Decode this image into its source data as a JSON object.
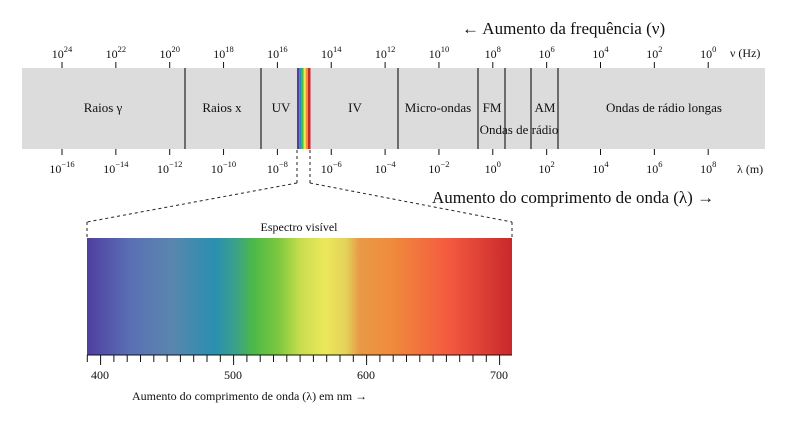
{
  "freq_axis": {
    "title": "← Aumento da frequência (ν)",
    "unit": "ν (Hz)",
    "ticks": [
      {
        "base": "10",
        "exp": "24"
      },
      {
        "base": "10",
        "exp": "22"
      },
      {
        "base": "10",
        "exp": "20"
      },
      {
        "base": "10",
        "exp": "18"
      },
      {
        "base": "10",
        "exp": "16"
      },
      {
        "base": "10",
        "exp": "14"
      },
      {
        "base": "10",
        "exp": "12"
      },
      {
        "base": "10",
        "exp": "10"
      },
      {
        "base": "10",
        "exp": "8"
      },
      {
        "base": "10",
        "exp": "6"
      },
      {
        "base": "10",
        "exp": "4"
      },
      {
        "base": "10",
        "exp": "2"
      },
      {
        "base": "10",
        "exp": "0"
      }
    ]
  },
  "wave_axis": {
    "title": "Aumento do comprimento de onda (λ) →",
    "unit": "λ (m)",
    "ticks": [
      {
        "base": "10",
        "exp": "−16"
      },
      {
        "base": "10",
        "exp": "−14"
      },
      {
        "base": "10",
        "exp": "−12"
      },
      {
        "base": "10",
        "exp": "−10"
      },
      {
        "base": "10",
        "exp": "−8"
      },
      {
        "base": "10",
        "exp": "−6"
      },
      {
        "base": "10",
        "exp": "−4"
      },
      {
        "base": "10",
        "exp": "−2"
      },
      {
        "base": "10",
        "exp": "0"
      },
      {
        "base": "10",
        "exp": "2"
      },
      {
        "base": "10",
        "exp": "4"
      },
      {
        "base": "10",
        "exp": "6"
      },
      {
        "base": "10",
        "exp": "8"
      }
    ]
  },
  "bands": {
    "gamma": "Raios γ",
    "xray": "Raios x",
    "uv": "UV",
    "ir": "IV",
    "micro": "Micro-ondas",
    "fm": "FM",
    "am": "AM",
    "radio_waves": "Ondas de rádio",
    "long_radio": "Ondas de rádio longas"
  },
  "visible": {
    "title": "Espectro visível",
    "axis_title": "Aumento do comprimento de onda (λ) em nm →",
    "ticks": [
      "400",
      "500",
      "600",
      "700"
    ]
  },
  "colors": {
    "band_fill": "#dcdcdc",
    "violet": "#5a4aa8",
    "blue": "#2a8fb0",
    "green": "#4bb848",
    "yellow": "#ece85a",
    "orange": "#f08a3c",
    "red": "#c8282c"
  }
}
